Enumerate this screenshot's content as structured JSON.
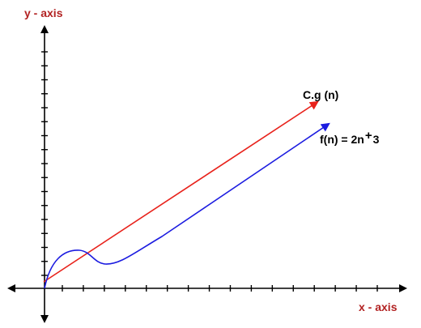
{
  "colors": {
    "axis_title": "#b22222",
    "axis": "#000000",
    "cg_line": "#e8221b",
    "fn_curve": "#1c1ce0"
  },
  "labels": {
    "y_axis": "y - axis",
    "x_axis": "x - axis",
    "cg": "C.g (n)",
    "fn_text": "f(n) = 2n",
    "fn_plus": "+",
    "fn_const": "3"
  },
  "ticks": {
    "y_count": 17,
    "x_count": 16
  }
}
